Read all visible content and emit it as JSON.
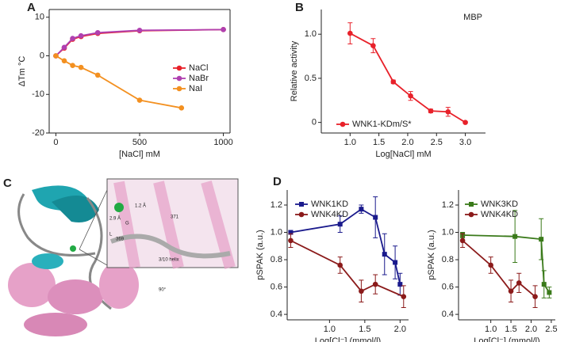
{
  "panel_labels": [
    "A",
    "B",
    "C",
    "D"
  ],
  "structure": {
    "labels": [
      "1.2 Å",
      "2.9 Å",
      "G",
      "371",
      "L",
      "369",
      "3/10 helix",
      "90°"
    ]
  },
  "chart_data": [
    {
      "type": "scatter",
      "x_label": "[NaCl] mM",
      "y_label": "ΔTm °C",
      "xlim": [
        -40,
        1040
      ],
      "ylim": [
        -20,
        12
      ],
      "xticks": [
        0,
        500,
        1000
      ],
      "yticks": [
        -20,
        -10,
        0,
        10
      ],
      "series": [
        {
          "name": "NaCl",
          "color": "#e8212a",
          "marker": "circle",
          "x": [
            0,
            50,
            100,
            150,
            250,
            500,
            1000
          ],
          "values": [
            0,
            2,
            4.3,
            5,
            5.8,
            6.5,
            6.8
          ]
        },
        {
          "name": "NaBr",
          "color": "#b040b0",
          "marker": "circle",
          "x": [
            0,
            50,
            100,
            150,
            250,
            500,
            1000
          ],
          "values": [
            0,
            2.2,
            4.5,
            5.2,
            6,
            6.6,
            6.8
          ]
        },
        {
          "name": "NaI",
          "color": "#f39020",
          "marker": "circle",
          "x": [
            0,
            50,
            100,
            150,
            250,
            500,
            750
          ],
          "values": [
            0,
            -1.3,
            -2.5,
            -3,
            -5,
            -11.5,
            -13.5
          ]
        }
      ]
    },
    {
      "type": "scatter",
      "x_label": "Log[NaCl] mM",
      "y_label": "Relative activity",
      "annotation": "MBP",
      "xlim": [
        0.5,
        3.35
      ],
      "ylim": [
        -0.12,
        1.28
      ],
      "xticks": [
        {
          "value": 1,
          "label": "1.0"
        },
        1.5,
        {
          "value": 2,
          "label": "2.0"
        },
        2.5,
        {
          "value": 3,
          "label": "3.0"
        }
      ],
      "yticks": [
        0,
        0.5,
        {
          "value": 1,
          "label": "1.0"
        }
      ],
      "series": [
        {
          "name": "WNK1-KDm/S*",
          "color": "#e8212a",
          "marker": "circle",
          "x": [
            1.0,
            1.4,
            1.75,
            2.05,
            2.4,
            2.7,
            3.0
          ],
          "values": [
            1.01,
            0.87,
            0.46,
            0.3,
            0.13,
            0.12,
            0.0
          ],
          "errors": [
            0.12,
            0.08,
            0.02,
            0.05,
            0.02,
            0.05,
            0.01
          ]
        }
      ]
    },
    {
      "type": "scatter",
      "x_label": "Log[Cl⁻] (mmol/l)",
      "y_label": "pSPAK (a.u.)",
      "xlim": [
        0.4,
        2.12
      ],
      "ylim": [
        0.36,
        1.31
      ],
      "xticks": [
        {
          "value": 1,
          "label": "1.0"
        },
        1.5,
        {
          "value": 2,
          "label": "2.0"
        }
      ],
      "yticks": [
        0.4,
        0.6,
        0.8,
        {
          "value": 1,
          "label": "1.0"
        },
        1.2
      ],
      "series": [
        {
          "name": "WNK1KD",
          "color": "#1a1a8c",
          "marker": "square",
          "x": [
            0.45,
            1.15,
            1.45,
            1.65,
            1.78,
            1.93,
            2.0
          ],
          "values": [
            1.0,
            1.06,
            1.17,
            1.11,
            0.84,
            0.78,
            0.62
          ],
          "errors": [
            0.01,
            0.06,
            0.03,
            0.15,
            0.15,
            0.12,
            0.08
          ]
        },
        {
          "name": "WNK4KD",
          "color": "#8b1a1a",
          "marker": "circle",
          "x": [
            0.45,
            1.15,
            1.45,
            1.65,
            2.05
          ],
          "values": [
            0.94,
            0.76,
            0.57,
            0.62,
            0.53
          ],
          "errors": [
            0.05,
            0.06,
            0.08,
            0.07,
            0.08
          ]
        }
      ]
    },
    {
      "type": "scatter",
      "x_label": "Log[Cl⁻] (mmol/l)",
      "y_label": "pSPAK (a.u.)",
      "xlim": [
        0.2,
        2.6
      ],
      "ylim": [
        0.36,
        1.31
      ],
      "xticks": [
        {
          "value": 1,
          "label": "1.0"
        },
        1.5,
        {
          "value": 2,
          "label": "2.0"
        },
        2.5
      ],
      "yticks": [
        0.4,
        0.6,
        0.8,
        {
          "value": 1,
          "label": "1.0"
        },
        1.2
      ],
      "series": [
        {
          "name": "WNK3KD",
          "color": "#3a7a1a",
          "marker": "square",
          "x": [
            0.3,
            1.6,
            2.25,
            2.32,
            2.45
          ],
          "values": [
            0.98,
            0.97,
            0.95,
            0.62,
            0.56
          ],
          "errors": [
            0.02,
            0.19,
            0.15,
            0.1,
            0.04
          ]
        },
        {
          "name": "WNK4KD",
          "color": "#8b1a1a",
          "marker": "circle",
          "x": [
            0.3,
            1.0,
            1.5,
            1.7,
            2.1
          ],
          "values": [
            0.94,
            0.76,
            0.57,
            0.63,
            0.53
          ],
          "errors": [
            0.05,
            0.06,
            0.08,
            0.07,
            0.08
          ]
        }
      ]
    }
  ]
}
